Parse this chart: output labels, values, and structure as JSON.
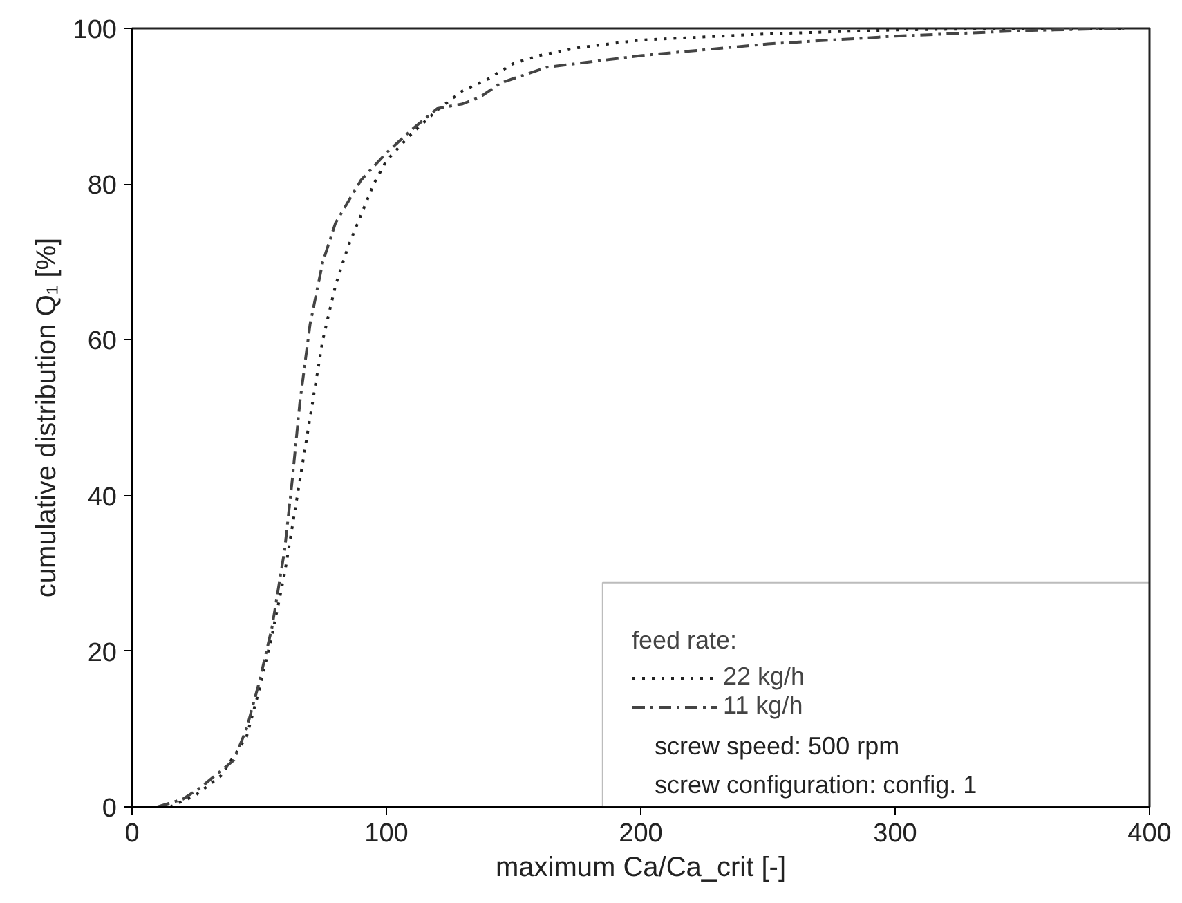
{
  "chart_data": {
    "type": "line",
    "xlabel": "maximum Ca/Ca_crit [-]",
    "ylabel": "cumulative distribution Q₁ [%]",
    "legend_title": "feed rate:",
    "legend": "bottom right",
    "grid": false,
    "marker": "none",
    "xlim": [
      0,
      400
    ],
    "ylim": [
      0,
      100
    ],
    "xticks": [
      0,
      100,
      200,
      300,
      400
    ],
    "yticks": [
      0,
      20,
      40,
      60,
      80,
      100
    ],
    "annotations": [
      "screw speed: 500 rpm",
      "screw configuration: config. 1"
    ],
    "series": [
      {
        "name": "22 kg/h",
        "color": "#222222",
        "line_style": "dotted",
        "x": [
          15,
          25,
          35,
          45,
          50,
          55,
          60,
          65,
          70,
          75,
          80,
          85,
          90,
          95,
          100,
          110,
          120,
          130,
          140,
          150,
          160,
          175,
          200,
          250,
          300,
          350,
          390
        ],
        "values": [
          0,
          1.5,
          4,
          9,
          15,
          22,
          30,
          40,
          50,
          60,
          67,
          72,
          76,
          80,
          83,
          86.5,
          89.5,
          92,
          93.5,
          95.5,
          96.5,
          97.5,
          98.5,
          99.3,
          99.8,
          100,
          100
        ]
      },
      {
        "name": "11 kg/h",
        "color": "#444444",
        "line_style": "dashdot",
        "x": [
          10,
          20,
          27,
          40,
          45,
          50,
          55,
          60,
          63,
          66,
          70,
          75,
          80,
          90,
          100,
          110,
          120,
          130,
          137,
          145,
          163,
          200,
          250,
          300,
          350,
          390
        ],
        "values": [
          0,
          1,
          2.5,
          6,
          10,
          16,
          23,
          33,
          42,
          52,
          62,
          70,
          75,
          80.5,
          84,
          87,
          89.7,
          90.3,
          91.2,
          93,
          95,
          96.5,
          98,
          99,
          99.7,
          100
        ]
      }
    ]
  }
}
